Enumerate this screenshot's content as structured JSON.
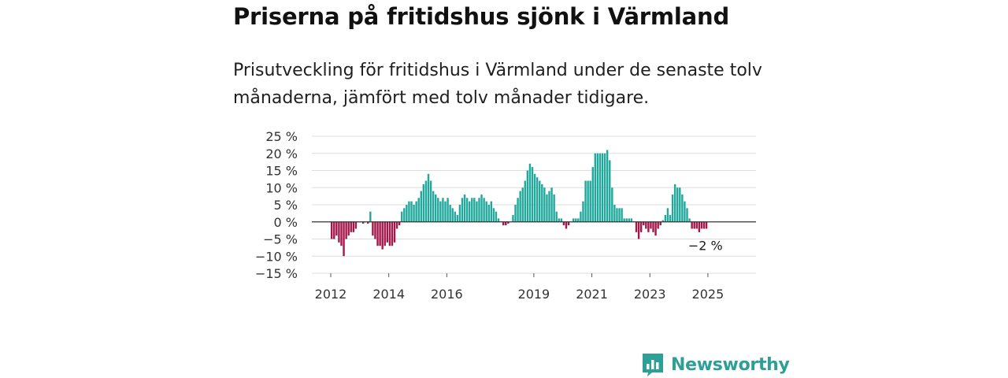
{
  "title": "Priserna på fritidshus sjönk i Värmland",
  "subtitle": "Prisutveckling för fritidshus i Värmland under de senaste tolv månaderna, jämfört med tolv månader tidigare.",
  "brand": {
    "name": "Newsworthy",
    "icon": "bar-chart-speech-bubble-icon",
    "color": "#2e9f96"
  },
  "chart_data": {
    "type": "bar",
    "title": "Priserna på fritidshus sjönk i Värmland",
    "xlabel": "",
    "ylabel": "",
    "ylim": [
      -15,
      25
    ],
    "y_ticks": [
      25,
      20,
      15,
      10,
      5,
      0,
      -5,
      -10,
      -15
    ],
    "y_tick_labels": [
      "25 %",
      "20 %",
      "15 %",
      "10 %",
      "5 %",
      "0 %",
      "−5 %",
      "−10 %",
      "−15 %"
    ],
    "x_tick_labels": [
      "2012",
      "2014",
      "2016",
      "2019",
      "2021",
      "2023",
      "2025"
    ],
    "x_tick_years": [
      2012,
      2014,
      2016,
      2019,
      2021,
      2023,
      2025
    ],
    "x_start_year": 2012,
    "x_start_month": 1,
    "frequency": "monthly",
    "grid": true,
    "positive_color": "#1fa89b",
    "negative_color": "#a3174a",
    "annotation": {
      "text": "−2 %",
      "value": -2,
      "target": "last"
    },
    "values": [
      -5,
      -5,
      -4,
      -6,
      -7,
      -10,
      -5,
      -4,
      -3,
      -3,
      -2,
      0,
      0,
      -0.5,
      0,
      -0.5,
      3,
      -4,
      -5,
      -7,
      -7,
      -8,
      -7,
      -6,
      -7,
      -7,
      -6,
      -2,
      -1,
      3,
      4,
      5,
      6,
      6,
      5,
      6,
      7,
      9,
      11,
      12,
      14,
      12,
      9,
      8,
      7,
      6,
      7,
      6,
      7,
      5,
      4,
      3,
      2,
      5,
      7,
      8,
      7,
      6,
      7,
      7,
      6,
      7,
      8,
      7,
      6,
      5,
      6,
      4,
      3,
      1,
      0,
      -1,
      -1,
      -0.5,
      0,
      2,
      5,
      7,
      9,
      10,
      12,
      15,
      17,
      16,
      14,
      13,
      12,
      11,
      10,
      8,
      9,
      10,
      8,
      3,
      1,
      1,
      -1,
      -2,
      -1,
      0,
      1,
      1,
      1,
      3,
      6,
      12,
      12,
      12,
      16,
      20,
      20,
      20,
      20,
      20,
      21,
      18,
      10,
      5,
      4,
      4,
      4,
      1,
      1,
      1,
      1,
      0,
      -3,
      -5,
      -3,
      -1,
      -2,
      -3,
      -2,
      -3,
      -4,
      -2,
      -1,
      0.5,
      2,
      4,
      2,
      8,
      11,
      10,
      10,
      8,
      6,
      4,
      1,
      -2,
      -2,
      -2,
      -3,
      -2,
      -2,
      -2
    ]
  }
}
